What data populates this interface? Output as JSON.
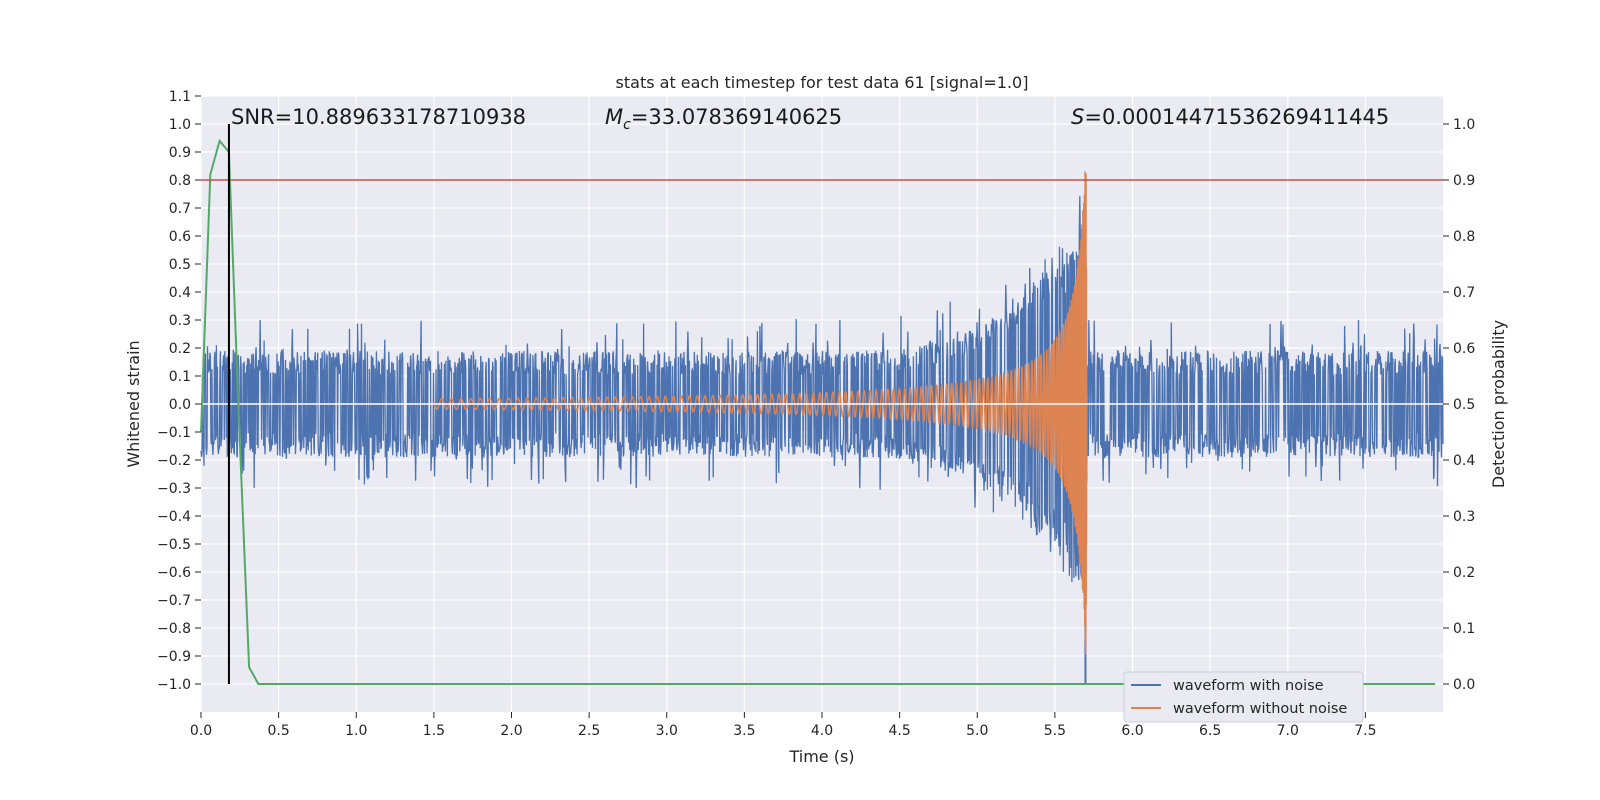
{
  "chart_data": {
    "type": "line",
    "title": "stats at each timestep for test data 61 [signal=1.0]",
    "xlabel": "Time (s)",
    "ylabel": "Whitened strain",
    "y2label": "Detection probability",
    "xlim": [
      0.0,
      8.0
    ],
    "ylim": [
      -1.1,
      1.1
    ],
    "y2lim": [
      -0.05,
      1.05
    ],
    "x_ticks": [
      "0.0",
      "0.5",
      "1.0",
      "1.5",
      "2.0",
      "2.5",
      "3.0",
      "3.5",
      "4.0",
      "4.5",
      "5.0",
      "5.5",
      "6.0",
      "6.5",
      "7.0",
      "7.5"
    ],
    "y_ticks": [
      "1.1",
      "1.0",
      "0.9",
      "0.8",
      "0.7",
      "0.6",
      "0.5",
      "0.4",
      "0.3",
      "0.2",
      "0.1",
      "0.0",
      "−0.1",
      "−0.2",
      "−0.3",
      "−0.4",
      "−0.5",
      "−0.6",
      "−0.7",
      "−0.8",
      "−0.9",
      "−1.0"
    ],
    "y2_ticks": [
      "1.0",
      "0.9",
      "0.8",
      "0.7",
      "0.6",
      "0.5",
      "0.4",
      "0.3",
      "0.2",
      "0.1",
      "0.0"
    ],
    "grid": true,
    "legend_position": "lower-right",
    "annotations": {
      "snr": "SNR=10.889633178710938",
      "mc_symbol": "M",
      "mc_sub": "c",
      "mc_value": "=33.078369140625",
      "s_symbol": "S",
      "s_value": "=0.00014471536269411445"
    },
    "series": [
      {
        "name": "waveform with noise",
        "color": "#4c72b0",
        "noise_amplitude": 0.19,
        "merger_time": 5.7,
        "merger_min": -1.0
      },
      {
        "name": "waveform without noise",
        "color": "#dd8452",
        "chirp_start": 1.5,
        "merger_time": 5.7,
        "peak_amplitude": 1.0
      },
      {
        "name": "",
        "color": "#55a868",
        "axis": "y2",
        "x": [
          0.0,
          0.06,
          0.12,
          0.18,
          0.24,
          0.31,
          0.37,
          0.5,
          1.0,
          2.0,
          3.0,
          4.0,
          5.0,
          6.0,
          7.0,
          7.95
        ],
        "values": [
          0.45,
          0.91,
          0.97,
          0.95,
          0.5,
          0.03,
          0.0,
          0.0,
          0.0,
          0.0,
          0.0,
          0.0,
          0.0,
          0.0,
          0.0,
          0.0
        ]
      }
    ],
    "threshold_line": {
      "value": 0.9,
      "axis": "y2",
      "color": "#c44e52"
    },
    "detection_marker": {
      "x": 0.18,
      "color": "#000000"
    },
    "background_color": "#eaeaf2"
  }
}
